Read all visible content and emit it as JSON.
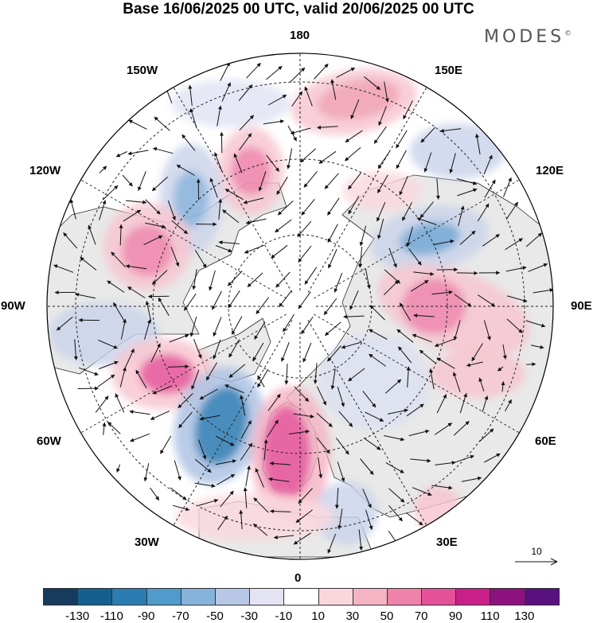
{
  "title": "Base 16/06/2025 00 UTC, valid 20/06/2025 00 UTC",
  "brand": "MODES",
  "brand_mark": "©",
  "longitude_labels": {
    "top": "180",
    "bottom": "0",
    "left": "90W",
    "right": "90E",
    "upper_left_1": "150W",
    "upper_left_2": "120W",
    "lower_left_1": "60W",
    "lower_left_2": "30W",
    "upper_right_1": "150E",
    "upper_right_2": "120E",
    "lower_right_1": "60E",
    "lower_right_2": "30E"
  },
  "reference_vector": {
    "label": "10"
  },
  "colorbar": {
    "ticks": [
      "-130",
      "-110",
      "-90",
      "-70",
      "-50",
      "-30",
      "-10",
      "10",
      "30",
      "50",
      "70",
      "90",
      "110",
      "130"
    ],
    "colors": [
      "#163b5c",
      "#155f8e",
      "#2a7cb3",
      "#4f9bcb",
      "#86b3da",
      "#b8c7e6",
      "#e4e3f3",
      "#ffffff",
      "#fad7dd",
      "#f5b3c3",
      "#ef82ab",
      "#e5509a",
      "#c81f88",
      "#8e1180",
      "#5a1180"
    ]
  },
  "map": {
    "projection": "north-polar-stereographic",
    "colors": {
      "land": "#e9e9e9",
      "coast": "#2a2a2a",
      "grid": "#222222",
      "arrow": "#111111"
    }
  }
}
